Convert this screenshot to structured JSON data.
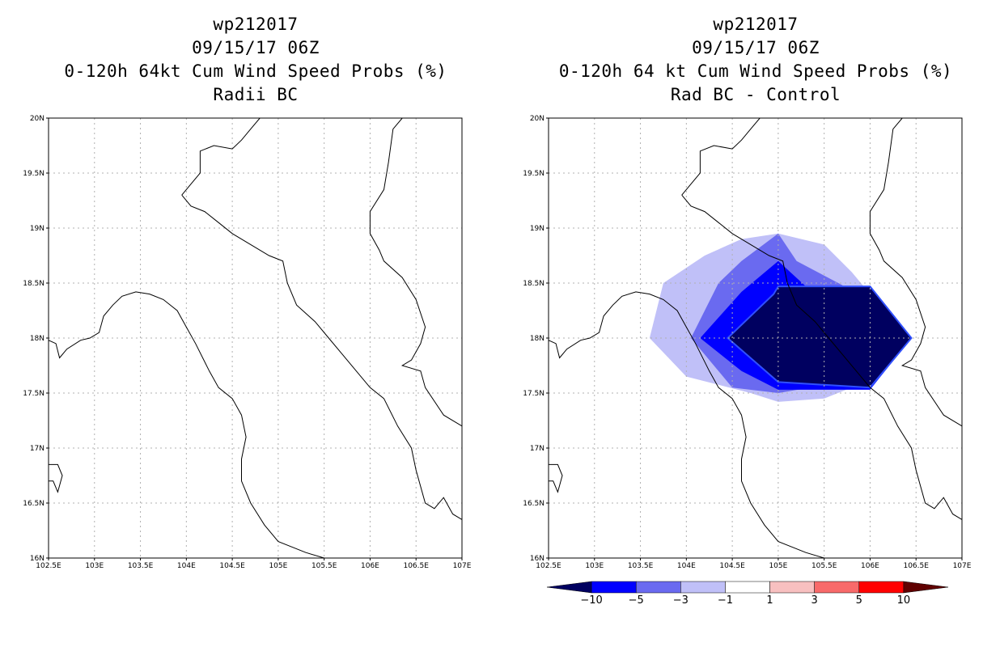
{
  "left_panel": {
    "title_lines": [
      "wp212017",
      "09/15/17 06Z",
      "0-120h 64kt Cum Wind Speed Probs (%)",
      "Radii BC"
    ]
  },
  "right_panel": {
    "title_lines": [
      "wp212017",
      "09/15/17 06Z",
      "0-120h 64 kt Cum Wind Speed Probs (%)",
      "Rad BC - Control"
    ]
  },
  "axes": {
    "lon_range": [
      102.5,
      107
    ],
    "lat_range": [
      16,
      20
    ],
    "lon_ticks": [
      "102.5E",
      "103E",
      "103.5E",
      "104E",
      "104.5E",
      "105E",
      "105.5E",
      "106E",
      "106.5E",
      "107E"
    ],
    "lat_ticks": [
      "16N",
      "16.5N",
      "17N",
      "17.5N",
      "18N",
      "18.5N",
      "19N",
      "19.5N",
      "20N"
    ]
  },
  "colorbar": {
    "labels": [
      "-10",
      "-5",
      "-3",
      "-1",
      "1",
      "3",
      "5",
      "10"
    ],
    "colors": [
      "#000060",
      "#0000ff",
      "#6a6af0",
      "#c0c0f8",
      "#ffffff",
      "#f8c0c0",
      "#f86a6a",
      "#ff0000",
      "#600000"
    ]
  },
  "map_data": {
    "type": "filled_contour_map",
    "difference_regions": [
      {
        "class": "-3 to -1",
        "color": "#c0c0f8",
        "polygon": [
          [
            103.75,
            18.5
          ],
          [
            104.2,
            18.75
          ],
          [
            104.6,
            18.9
          ],
          [
            105.0,
            18.95
          ],
          [
            105.5,
            18.85
          ],
          [
            105.8,
            18.6
          ],
          [
            105.95,
            18.45
          ],
          [
            105.95,
            17.6
          ],
          [
            105.5,
            17.45
          ],
          [
            105.0,
            17.42
          ],
          [
            104.7,
            17.5
          ],
          [
            104.0,
            17.65
          ],
          [
            103.6,
            18.0
          ]
        ]
      },
      {
        "class": "-5 to -3",
        "color": "#6a6af0",
        "polygon": [
          [
            104.35,
            18.5
          ],
          [
            104.6,
            18.7
          ],
          [
            105.0,
            18.95
          ],
          [
            105.2,
            18.7
          ],
          [
            105.7,
            18.48
          ],
          [
            105.7,
            17.6
          ],
          [
            105.0,
            17.5
          ],
          [
            104.5,
            17.55
          ],
          [
            104.05,
            18.0
          ]
        ]
      },
      {
        "class": "-10 to -5",
        "color": "#0000ff",
        "polygon": [
          [
            104.6,
            18.42
          ],
          [
            105.0,
            18.7
          ],
          [
            105.3,
            18.47
          ],
          [
            106.0,
            18.47
          ],
          [
            106.45,
            18.0
          ],
          [
            106.0,
            17.53
          ],
          [
            105.0,
            17.53
          ],
          [
            104.6,
            17.7
          ],
          [
            104.15,
            18.0
          ]
        ]
      },
      {
        "class": "< -10",
        "color": "#000060",
        "polygon": [
          [
            104.95,
            18.4
          ],
          [
            105.0,
            18.47
          ],
          [
            106.0,
            18.47
          ],
          [
            106.45,
            18.0
          ],
          [
            106.0,
            17.55
          ],
          [
            105.0,
            17.6
          ],
          [
            104.45,
            18.0
          ]
        ]
      }
    ],
    "coastline": [
      [
        102.5,
        16.85
      ],
      [
        102.6,
        16.85
      ],
      [
        102.65,
        16.75
      ],
      [
        102.6,
        16.6
      ],
      [
        102.55,
        16.7
      ],
      [
        102.5,
        16.7
      ]
    ],
    "coastline_segments": [
      [
        [
          102.5,
          17.98
        ],
        [
          102.58,
          17.95
        ],
        [
          102.62,
          17.82
        ],
        [
          102.7,
          17.9
        ],
        [
          102.85,
          17.98
        ],
        [
          102.95,
          18.0
        ],
        [
          103.05,
          18.05
        ],
        [
          103.1,
          18.2
        ],
        [
          103.2,
          18.3
        ],
        [
          103.3,
          18.38
        ],
        [
          103.45,
          18.42
        ],
        [
          103.6,
          18.4
        ],
        [
          103.75,
          18.35
        ],
        [
          103.9,
          18.25
        ],
        [
          104.0,
          18.1
        ],
        [
          104.1,
          17.95
        ],
        [
          104.25,
          17.7
        ],
        [
          104.35,
          17.55
        ],
        [
          104.5,
          17.45
        ],
        [
          104.6,
          17.3
        ],
        [
          104.65,
          17.1
        ],
        [
          104.6,
          16.9
        ],
        [
          104.6,
          16.7
        ],
        [
          104.7,
          16.5
        ],
        [
          104.85,
          16.3
        ],
        [
          105.0,
          16.15
        ],
        [
          105.3,
          16.05
        ],
        [
          105.5,
          16.0
        ]
      ],
      [
        [
          103.95,
          19.3
        ],
        [
          104.05,
          19.4
        ],
        [
          104.15,
          19.5
        ],
        [
          104.15,
          19.7
        ],
        [
          104.3,
          19.75
        ],
        [
          104.5,
          19.72
        ],
        [
          104.6,
          19.8
        ],
        [
          104.7,
          19.9
        ],
        [
          104.8,
          20.0
        ]
      ],
      [
        [
          103.95,
          19.3
        ],
        [
          104.05,
          19.2
        ],
        [
          104.2,
          19.15
        ],
        [
          104.35,
          19.05
        ],
        [
          104.5,
          18.95
        ],
        [
          104.7,
          18.85
        ],
        [
          104.9,
          18.75
        ],
        [
          105.05,
          18.7
        ],
        [
          105.1,
          18.5
        ],
        [
          105.2,
          18.3
        ],
        [
          105.4,
          18.15
        ],
        [
          105.55,
          18.0
        ],
        [
          105.7,
          17.85
        ],
        [
          105.85,
          17.7
        ],
        [
          106.0,
          17.55
        ],
        [
          106.15,
          17.45
        ],
        [
          106.3,
          17.2
        ],
        [
          106.45,
          17.0
        ],
        [
          106.5,
          16.8
        ],
        [
          106.6,
          16.5
        ],
        [
          106.7,
          16.45
        ],
        [
          106.8,
          16.55
        ],
        [
          106.9,
          16.4
        ],
        [
          107.0,
          16.35
        ]
      ],
      [
        [
          106.35,
          20.0
        ],
        [
          106.25,
          19.9
        ],
        [
          106.2,
          19.6
        ],
        [
          106.15,
          19.35
        ],
        [
          106.0,
          19.15
        ],
        [
          106.0,
          18.95
        ],
        [
          106.1,
          18.8
        ],
        [
          106.15,
          18.7
        ],
        [
          106.35,
          18.55
        ],
        [
          106.5,
          18.35
        ],
        [
          106.6,
          18.1
        ],
        [
          106.55,
          17.95
        ],
        [
          106.45,
          17.8
        ],
        [
          106.35,
          17.75
        ],
        [
          106.55,
          17.7
        ],
        [
          106.6,
          17.55
        ],
        [
          106.8,
          17.3
        ],
        [
          107.0,
          17.2
        ]
      ]
    ]
  }
}
